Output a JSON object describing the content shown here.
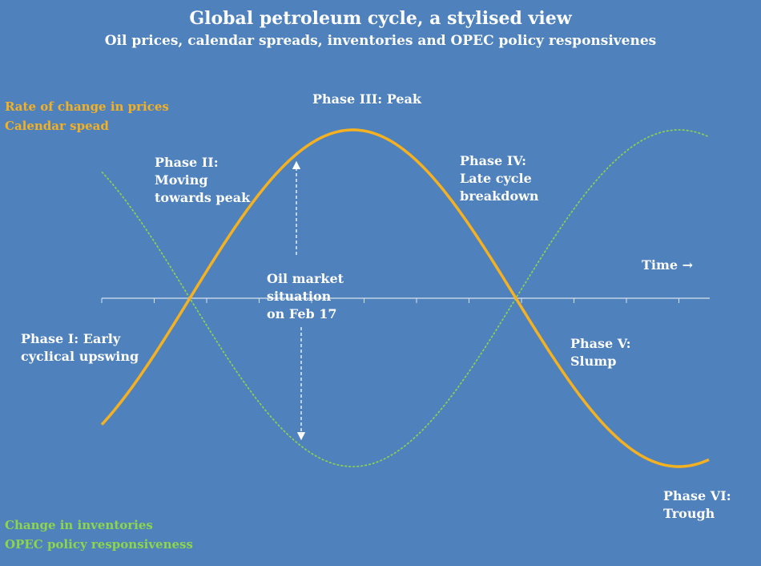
{
  "title": "Global petroleum cycle, a stylised view",
  "subtitle": "Oil prices, calendar spreads, inventories and OPEC policy responsivenes",
  "legend_top": {
    "line1": "Rate of change in prices",
    "line2": "Calendar spead",
    "color": "#f5b120"
  },
  "legend_bottom": {
    "line1": "Change in inventories",
    "line2": "OPEC policy responsiveness",
    "color": "#8dd64a"
  },
  "phases": {
    "phase1": "Phase I: Early\ncyclical upswing",
    "phase2": "Phase II:\nMoving\ntowards peak",
    "phase3": "Phase III: Peak",
    "phase4": "Phase IV:\nLate cycle\nbreakdown",
    "phase5": "Phase V:\nSlump",
    "phase6": "Phase VI:\nTrough"
  },
  "time_label": "Time →",
  "market_note": "Oil market\nsituation\non Feb 17",
  "colors": {
    "background": "#4f81bd",
    "orange_curve": "#f5b120",
    "green_curve": "#8dd64a",
    "axis": "#d9e3f0",
    "text": "#ffffff"
  }
}
